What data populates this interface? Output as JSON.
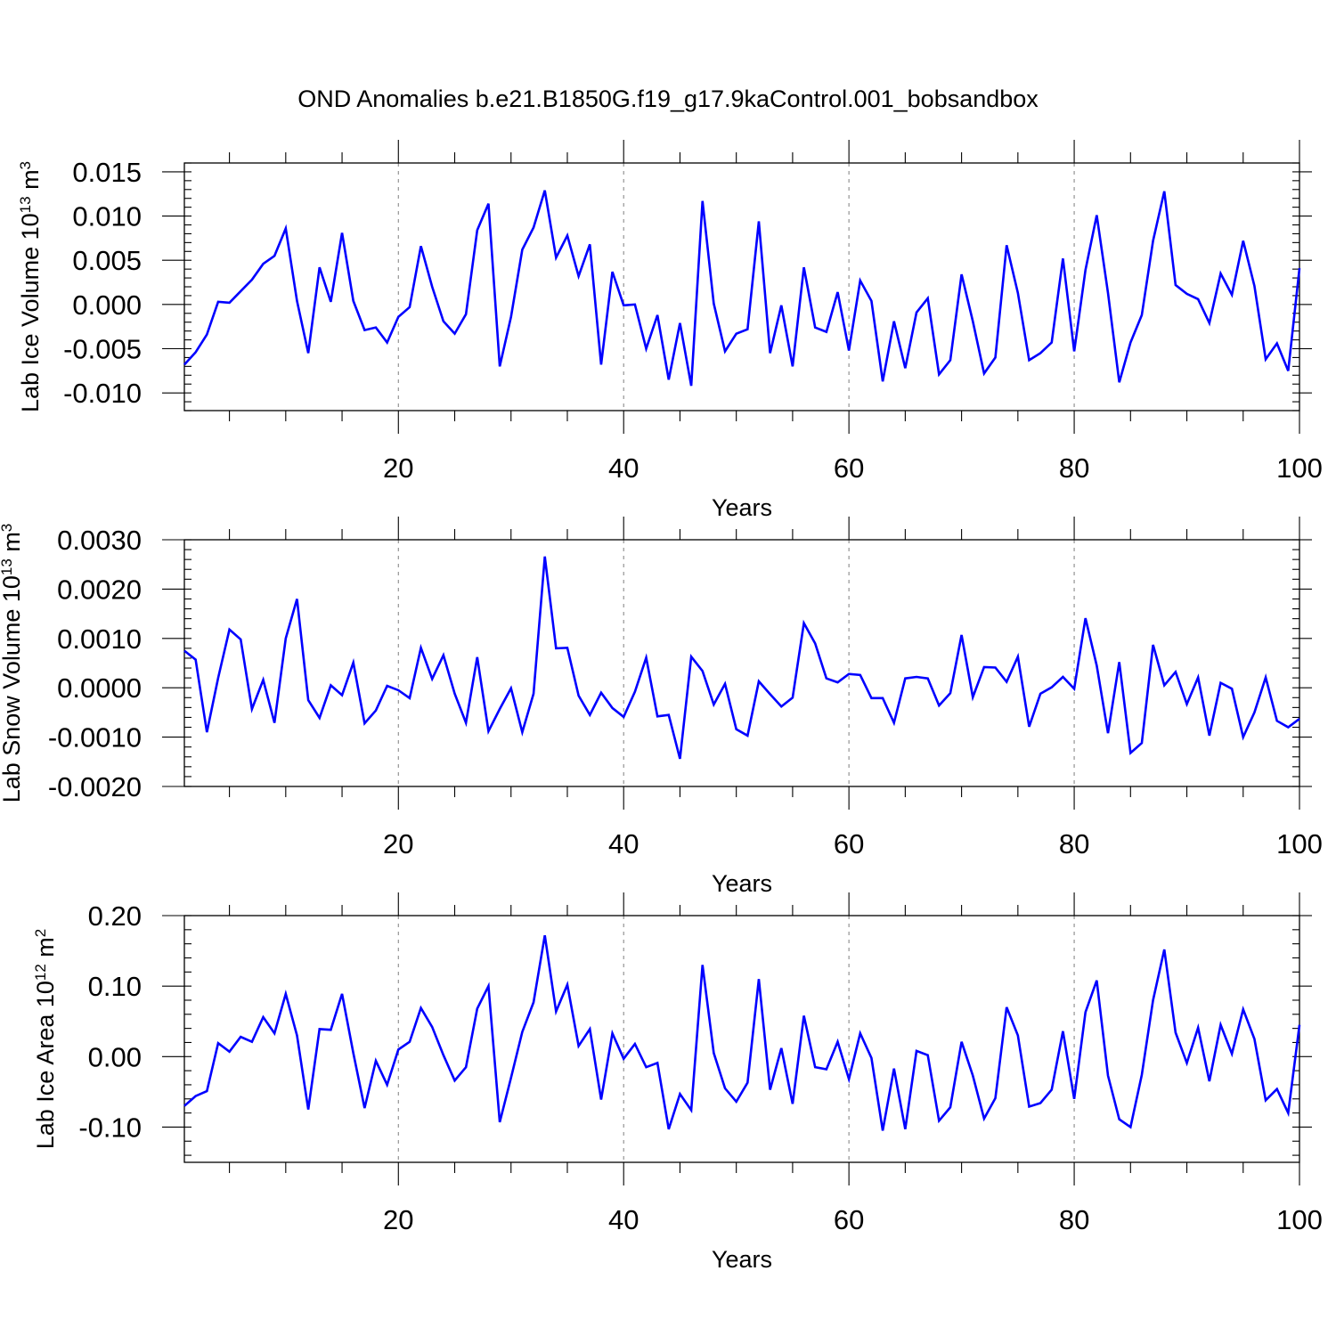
{
  "title": "OND Anomalies b.e21.B1850G.f19_g17.9kaControl.001_bobsandbox",
  "line_color": "#0000ff",
  "chart_data": [
    {
      "type": "line",
      "xlabel": "Years",
      "ylabel_main": "Lab Ice Volume 10",
      "ylabel_exp": "13",
      "ylabel_unit": " m",
      "ylabel_unit_exp": "3",
      "xlim": [
        1,
        100
      ],
      "ylim": [
        -0.012,
        0.016
      ],
      "x_ticks": [
        20,
        40,
        60,
        80,
        100
      ],
      "y_ticks": [
        -0.01,
        -0.005,
        0.0,
        0.005,
        0.01,
        0.015
      ],
      "y_tick_labels": [
        "-0.010",
        "-0.005",
        "0.000",
        "0.005",
        "0.010",
        "0.015"
      ],
      "grid": "vertical dashed at x ticks",
      "series": [
        {
          "name": "Lab Ice Volume",
          "x_start": 1,
          "values": [
            -0.0068,
            -0.0054,
            -0.0034,
            0.0003,
            0.0002,
            0.0015,
            0.0028,
            0.0046,
            0.0055,
            0.0086,
            0.0004,
            -0.0055,
            0.0042,
            0.0003,
            0.0081,
            0.0004,
            -0.0029,
            -0.0026,
            -0.0043,
            -0.0014,
            -0.0003,
            0.0066,
            0.002,
            -0.0019,
            -0.0033,
            -0.0011,
            0.0084,
            0.0114,
            -0.007,
            -0.0014,
            0.0062,
            0.0087,
            0.0129,
            0.0053,
            0.0078,
            0.0032,
            0.0068,
            -0.0068,
            0.0037,
            -0.0001,
            0.0,
            -0.005,
            -0.0012,
            -0.0085,
            -0.0021,
            -0.0092,
            0.0117,
            0.0001,
            -0.0053,
            -0.0033,
            -0.0028,
            0.0094,
            -0.0055,
            -0.0001,
            -0.007,
            0.0042,
            -0.0026,
            -0.0031,
            0.0014,
            -0.0052,
            0.0027,
            0.0004,
            -0.0087,
            -0.0019,
            -0.0072,
            -0.0009,
            0.0007,
            -0.0079,
            -0.0063,
            0.0034,
            -0.0019,
            -0.0078,
            -0.006,
            0.0067,
            0.0013,
            -0.0063,
            -0.0055,
            -0.0043,
            0.0052,
            -0.0053,
            0.0039,
            0.0101,
            0.0013,
            -0.0088,
            -0.0043,
            -0.0012,
            0.0072,
            0.0128,
            0.0022,
            0.0012,
            0.0006,
            -0.0021,
            0.0035,
            0.0011,
            0.0072,
            0.0021,
            -0.0062,
            -0.0044,
            -0.0075,
            0.0041
          ]
        }
      ]
    },
    {
      "type": "line",
      "xlabel": "Years",
      "ylabel_main": "Lab Snow Volume 10",
      "ylabel_exp": "13",
      "ylabel_unit": " m",
      "ylabel_unit_exp": "3",
      "xlim": [
        1,
        100
      ],
      "ylim": [
        -0.002,
        0.003
      ],
      "x_ticks": [
        20,
        40,
        60,
        80,
        100
      ],
      "y_ticks": [
        -0.002,
        -0.001,
        0.0,
        0.001,
        0.002,
        0.003
      ],
      "y_tick_labels": [
        "-0.0020",
        "-0.0010",
        "0.0000",
        "0.0010",
        "0.0020",
        "0.0030"
      ],
      "grid": "vertical dashed at x ticks",
      "series": [
        {
          "name": "Lab Snow Volume",
          "x_start": 1,
          "values": [
            0.00075,
            0.00057,
            -0.0009,
            0.0002,
            0.00118,
            0.00098,
            -0.00043,
            0.00016,
            -0.00071,
            0.001,
            0.0018,
            -0.00025,
            -0.00061,
            5e-05,
            -0.00015,
            0.00051,
            -0.00072,
            -0.00046,
            4e-05,
            -5e-05,
            -0.00021,
            0.00081,
            0.00018,
            0.00066,
            -0.00012,
            -0.00071,
            0.00062,
            -0.00088,
            -0.00043,
            -1e-05,
            -0.0009,
            -0.00012,
            0.00266,
            0.0008,
            0.00081,
            -0.00016,
            -0.00055,
            -0.0001,
            -0.00041,
            -0.00059,
            -8e-05,
            0.00061,
            -0.00058,
            -0.00055,
            -0.00144,
            0.00063,
            0.00034,
            -0.00034,
            8e-05,
            -0.00084,
            -0.00097,
            0.00013,
            -0.00013,
            -0.00038,
            -0.0002,
            0.00131,
            0.0009,
            0.00019,
            0.00011,
            0.00028,
            0.00026,
            -0.00021,
            -0.00021,
            -0.00071,
            0.00019,
            0.00022,
            0.00019,
            -0.00036,
            -0.00011,
            0.00107,
            -0.00019,
            0.00042,
            0.00041,
            0.00012,
            0.00063,
            -0.00079,
            -0.00012,
            1e-05,
            0.00022,
            -2e-05,
            0.00141,
            0.00045,
            -0.00092,
            0.00052,
            -0.00132,
            -0.00112,
            0.00087,
            5e-05,
            0.00032,
            -0.00033,
            0.00021,
            -0.00097,
            0.0001,
            -2e-05,
            -0.001,
            -0.0005,
            0.00021,
            -0.00067,
            -0.0008,
            -0.00063
          ]
        }
      ]
    },
    {
      "type": "line",
      "xlabel": "Years",
      "ylabel_main": "Lab Ice Area 10",
      "ylabel_exp": "12",
      "ylabel_unit": " m",
      "ylabel_unit_exp": "2",
      "xlim": [
        1,
        100
      ],
      "ylim": [
        -0.15,
        0.2
      ],
      "x_ticks": [
        20,
        40,
        60,
        80,
        100
      ],
      "y_ticks": [
        -0.1,
        0.0,
        0.1,
        0.2
      ],
      "y_tick_labels": [
        "-0.10",
        "0.00",
        "0.10",
        "0.20"
      ],
      "grid": "vertical dashed at x ticks",
      "series": [
        {
          "name": "Lab Ice Area",
          "x_start": 1,
          "values": [
            -0.07,
            -0.056,
            -0.049,
            0.019,
            0.007,
            0.028,
            0.021,
            0.056,
            0.033,
            0.089,
            0.03,
            -0.075,
            0.039,
            0.038,
            0.089,
            0.005,
            -0.073,
            -0.006,
            -0.04,
            0.01,
            0.021,
            0.069,
            0.042,
            0.002,
            -0.034,
            -0.015,
            0.068,
            0.1,
            -0.093,
            -0.03,
            0.035,
            0.077,
            0.172,
            0.064,
            0.102,
            0.015,
            0.039,
            -0.061,
            0.033,
            -0.003,
            0.018,
            -0.015,
            -0.009,
            -0.103,
            -0.053,
            -0.076,
            0.13,
            0.005,
            -0.045,
            -0.064,
            -0.037,
            0.11,
            -0.047,
            0.012,
            -0.067,
            0.058,
            -0.015,
            -0.018,
            0.021,
            -0.032,
            0.033,
            -0.002,
            -0.105,
            -0.017,
            -0.103,
            0.008,
            0.002,
            -0.091,
            -0.072,
            0.021,
            -0.027,
            -0.088,
            -0.059,
            0.07,
            0.03,
            -0.071,
            -0.066,
            -0.047,
            0.036,
            -0.06,
            0.063,
            0.108,
            -0.027,
            -0.089,
            -0.1,
            -0.026,
            0.08,
            0.152,
            0.034,
            -0.009,
            0.041,
            -0.035,
            0.045,
            0.004,
            0.067,
            0.025,
            -0.062,
            -0.046,
            -0.08,
            0.045
          ]
        }
      ]
    }
  ]
}
